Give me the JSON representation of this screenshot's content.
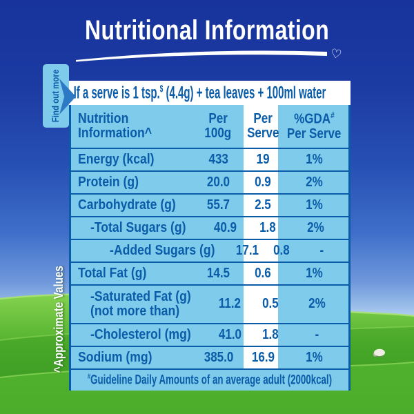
{
  "title": "Nutritional Information",
  "decor": {
    "heart": "♡"
  },
  "tab": {
    "label": "Find out more"
  },
  "side_note": "^Approximate Values",
  "serve_line": {
    "prefix": "If a serve is 1 tsp.",
    "sup": "$",
    "suffix": " (4.4g) + tea leaves + 100ml water"
  },
  "table": {
    "header": {
      "col1": [
        "Nutrition",
        "Information^"
      ],
      "col2": [
        "Per",
        "100g"
      ],
      "col3": [
        "Per",
        "Serve"
      ],
      "col4_line1": "%GDA",
      "col4_sup": "#",
      "col4_line2": "Per Serve"
    },
    "rows": [
      {
        "label": "Energy (kcal)",
        "indent": 0,
        "per100g": "433",
        "serve": "19",
        "gda": "1%"
      },
      {
        "label": "Protein (g)",
        "indent": 0,
        "per100g": "20.0",
        "serve": "0.9",
        "gda": "2%"
      },
      {
        "label": "Carbohydrate (g)",
        "indent": 0,
        "per100g": "55.7",
        "serve": "2.5",
        "gda": "1%"
      },
      {
        "label": "-Total Sugars (g)",
        "indent": 1,
        "per100g": "40.9",
        "serve": "1.8",
        "gda": "2%"
      },
      {
        "label": "-Added Sugars (g)",
        "indent": 2,
        "per100g": "17.1",
        "serve": "0.8",
        "gda": "-"
      },
      {
        "label": "Total Fat (g)",
        "indent": 0,
        "per100g": "14.5",
        "serve": "0.6",
        "gda": "1%"
      },
      {
        "label": "-Saturated Fat (g)",
        "sublabel": "(not more than)",
        "indent": 1,
        "per100g": "11.2",
        "serve": "0.5",
        "gda": "2%"
      },
      {
        "label": "-Cholesterol (mg)",
        "indent": 1,
        "per100g": "41.0",
        "serve": "1.8",
        "gda": "-"
      },
      {
        "label": "Sodium (mg)",
        "indent": 0,
        "per100g": "385.0",
        "serve": "16.9",
        "gda": "1%"
      }
    ],
    "footnote": {
      "sup": "#",
      "text": "Guideline Daily Amounts of an average adult (2000kcal)"
    }
  },
  "colors": {
    "sky_top": "#18339C",
    "sky_horizon": "#C9DEF5",
    "panel_blue": "#7FCBEB",
    "ink_blue": "#0A5CA8",
    "arrow_blue": "#2E79C4",
    "grass_light": "#84D24E",
    "grass_dark": "#2F8C1E",
    "white": "#FFFFFF"
  }
}
